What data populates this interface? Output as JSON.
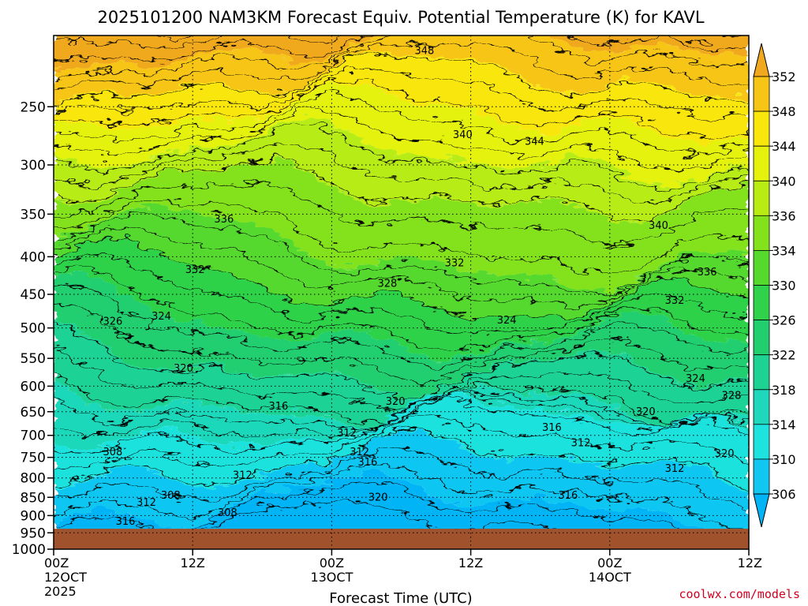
{
  "chart_data": {
    "type": "heatmap",
    "title": "2025101200 NAM3KM Forecast Equiv. Potential Temperature (K) for KAVL",
    "xlabel": "Forecast Time (UTC)",
    "ylabel": "",
    "x_ticks": [
      {
        "hour": 0,
        "label": "00Z",
        "sub": "12OCT",
        "sub2": "2025"
      },
      {
        "hour": 12,
        "label": "12Z",
        "sub": "",
        "sub2": ""
      },
      {
        "hour": 24,
        "label": "00Z",
        "sub": "13OCT",
        "sub2": ""
      },
      {
        "hour": 36,
        "label": "12Z",
        "sub": "",
        "sub2": ""
      },
      {
        "hour": 48,
        "label": "00Z",
        "sub": "14OCT",
        "sub2": ""
      },
      {
        "hour": 60,
        "label": "12Z",
        "sub": "",
        "sub2": ""
      }
    ],
    "xlim_hours": [
      0,
      60
    ],
    "y_ticks_hpa": [
      250,
      300,
      350,
      400,
      450,
      500,
      550,
      600,
      650,
      700,
      750,
      800,
      850,
      900,
      950,
      1000
    ],
    "ylim_hpa": [
      200,
      1000
    ],
    "y_scale": "log-pressure",
    "surface_pressure_hpa": 938,
    "grid": true,
    "colorbar_levels": [
      352,
      348,
      344,
      340,
      336,
      334,
      330,
      326,
      322,
      318,
      314,
      310,
      306
    ],
    "colorbar_colors": [
      "#f0a91e",
      "#f7c515",
      "#f9e60d",
      "#e4f20e",
      "#b8ec12",
      "#84e21c",
      "#56d92d",
      "#2fd24a",
      "#21cf6f",
      "#1ed294",
      "#1fd8bb",
      "#1ee2de",
      "#11c7f2",
      "#00b4f5"
    ],
    "surface_color": "#a0522d",
    "contour_labels": [
      {
        "value": "348",
        "hour": 32.0,
        "hpa": 210
      },
      {
        "value": "340",
        "hour": 35.3,
        "hpa": 273
      },
      {
        "value": "344",
        "hour": 41.5,
        "hpa": 279
      },
      {
        "value": "336",
        "hour": 14.7,
        "hpa": 356
      },
      {
        "value": "340",
        "hour": 52.2,
        "hpa": 363
      },
      {
        "value": "332",
        "hour": 12.2,
        "hpa": 417
      },
      {
        "value": "332",
        "hour": 34.6,
        "hpa": 408
      },
      {
        "value": "328",
        "hour": 28.8,
        "hpa": 435
      },
      {
        "value": "336",
        "hour": 56.4,
        "hpa": 420
      },
      {
        "value": "332",
        "hour": 53.6,
        "hpa": 459
      },
      {
        "value": "324",
        "hour": 9.3,
        "hpa": 482
      },
      {
        "value": "326",
        "hour": 5.1,
        "hpa": 490
      },
      {
        "value": "324",
        "hour": 39.1,
        "hpa": 488
      },
      {
        "value": "320",
        "hour": 11.2,
        "hpa": 568
      },
      {
        "value": "324",
        "hour": 55.4,
        "hpa": 586
      },
      {
        "value": "328",
        "hour": 58.5,
        "hpa": 618
      },
      {
        "value": "316",
        "hour": 19.4,
        "hpa": 639
      },
      {
        "value": "320",
        "hour": 29.5,
        "hpa": 630
      },
      {
        "value": "320",
        "hour": 51.1,
        "hpa": 650
      },
      {
        "value": "316",
        "hour": 43.0,
        "hpa": 683
      },
      {
        "value": "312",
        "hour": 25.3,
        "hpa": 695
      },
      {
        "value": "312",
        "hour": 45.5,
        "hpa": 717
      },
      {
        "value": "308",
        "hour": 5.1,
        "hpa": 738
      },
      {
        "value": "312",
        "hour": 26.4,
        "hpa": 738
      },
      {
        "value": "316",
        "hour": 27.1,
        "hpa": 762
      },
      {
        "value": "320",
        "hour": 57.9,
        "hpa": 741
      },
      {
        "value": "312",
        "hour": 16.3,
        "hpa": 794
      },
      {
        "value": "312",
        "hour": 53.6,
        "hpa": 777
      },
      {
        "value": "312",
        "hour": 8.0,
        "hpa": 864
      },
      {
        "value": "308",
        "hour": 10.1,
        "hpa": 845
      },
      {
        "value": "320",
        "hour": 28.0,
        "hpa": 850
      },
      {
        "value": "316",
        "hour": 44.4,
        "hpa": 845
      },
      {
        "value": "308",
        "hour": 15.0,
        "hpa": 892
      },
      {
        "value": "316",
        "hour": 6.2,
        "hpa": 917
      }
    ]
  },
  "credit": "coolwx.com/models"
}
